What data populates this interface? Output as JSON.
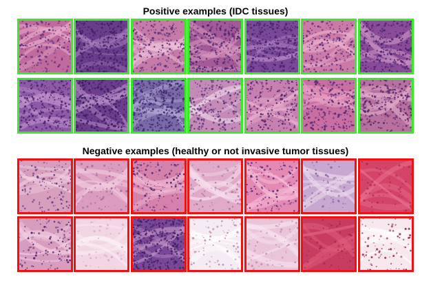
{
  "positive": {
    "title": "Positive examples (IDC tissues)",
    "border_color": "#33ee22",
    "tiles": [
      {
        "base": "#c06a9e",
        "dark": "#5b2f7c",
        "light": "#e7a9c8",
        "density": 0.35
      },
      {
        "base": "#6a3c8c",
        "dark": "#3d1f62",
        "light": "#a97cbc",
        "density": 0.85
      },
      {
        "base": "#c57aa8",
        "dark": "#5a2e78",
        "light": "#edc0d8",
        "density": 0.45
      },
      {
        "base": "#a45a98",
        "dark": "#4a2570",
        "light": "#e0a0c4",
        "density": 0.6
      },
      {
        "base": "#7a4898",
        "dark": "#45236a",
        "light": "#b888c8",
        "density": 0.8
      },
      {
        "base": "#cc7aa8",
        "dark": "#5a2c78",
        "light": "#eab0cc",
        "density": 0.4
      },
      {
        "base": "#8a4c98",
        "dark": "#4a2470",
        "light": "#c890c0",
        "density": 0.7
      },
      {
        "base": "#8e5aa6",
        "dark": "#472472",
        "light": "#c79ad0",
        "density": 0.65
      },
      {
        "base": "#6e3e8e",
        "dark": "#3b1d60",
        "light": "#b48ac4",
        "density": 0.8
      },
      {
        "base": "#7a6aa8",
        "dark": "#3e2a70",
        "light": "#b2a6d4",
        "density": 0.9
      },
      {
        "base": "#c48ab8",
        "dark": "#5b3078",
        "light": "#ead0e4",
        "density": 0.45
      },
      {
        "base": "#c880b0",
        "dark": "#55266e",
        "light": "#eab4d0",
        "density": 0.45
      },
      {
        "base": "#c86ea2",
        "dark": "#5a2a74",
        "light": "#e8a2c4",
        "density": 0.5
      },
      {
        "base": "#b8709e",
        "dark": "#55296f",
        "light": "#e0a8c8",
        "density": 0.55
      }
    ]
  },
  "negative": {
    "title": "Negative examples (healthy or not invasive tumor tissues)",
    "border_color": "#ee1111",
    "tiles": [
      {
        "base": "#d89ebe",
        "dark": "#6a3c86",
        "light": "#f2d2e2",
        "density": 0.2
      },
      {
        "base": "#dc9cc0",
        "dark": "#a06a9c",
        "light": "#f0c8dc",
        "density": 0.08
      },
      {
        "base": "#d482ac",
        "dark": "#5c2e78",
        "light": "#f0bcd6",
        "density": 0.25
      },
      {
        "base": "#e0aac8",
        "dark": "#a474a4",
        "light": "#f6dceb",
        "density": 0.08
      },
      {
        "base": "#e488b4",
        "dark": "#5e2e78",
        "light": "#f4bcd6",
        "density": 0.2
      },
      {
        "base": "#c8a8d0",
        "dark": "#8a6aa8",
        "light": "#ecdaec",
        "density": 0.08
      },
      {
        "base": "#d44468",
        "dark": "#a82a52",
        "light": "#e87090",
        "density": 0.05
      },
      {
        "base": "#d89cbe",
        "dark": "#5a2c76",
        "light": "#f2cee0",
        "density": 0.2
      },
      {
        "base": "#f2d6e4",
        "dark": "#d8a8c8",
        "light": "#fbf0f5",
        "density": 0.04
      },
      {
        "base": "#7a4898",
        "dark": "#3f1f64",
        "light": "#c090c4",
        "density": 0.85
      },
      {
        "base": "#f4ecf2",
        "dark": "#c48ab0",
        "light": "#ffffff",
        "density": 0.1
      },
      {
        "base": "#eac4d8",
        "dark": "#c98cb4",
        "light": "#f8e6f0",
        "density": 0.06
      },
      {
        "base": "#c83c62",
        "dark": "#a0284c",
        "light": "#e0607e",
        "density": 0.05
      },
      {
        "base": "#f6e8ee",
        "dark": "#9c3448",
        "light": "#ffffff",
        "density": 0.1
      }
    ]
  }
}
